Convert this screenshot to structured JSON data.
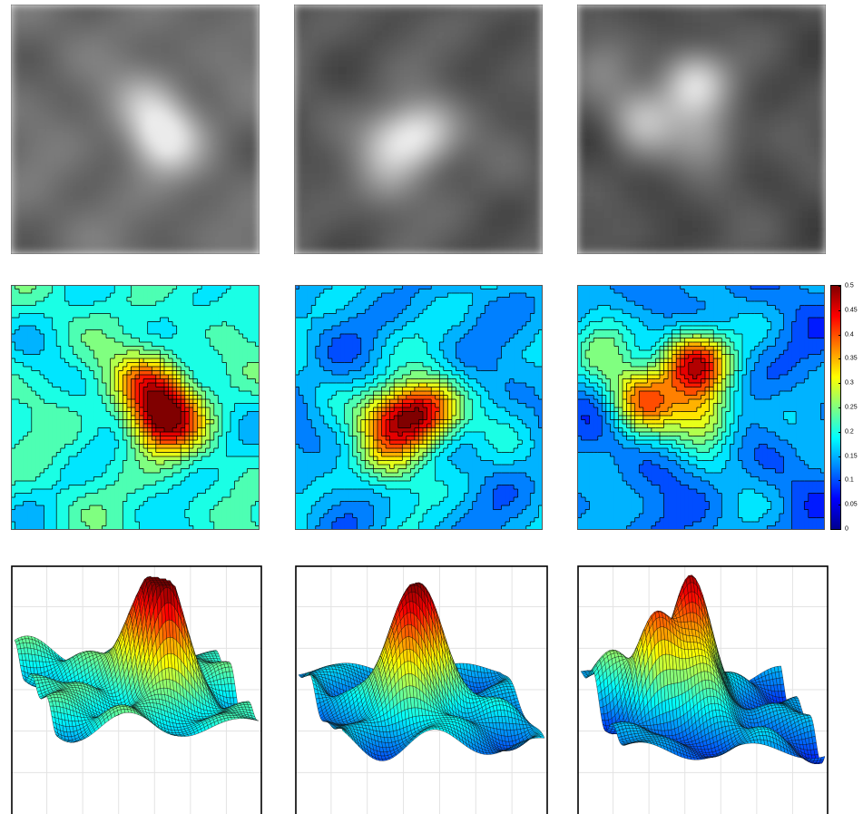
{
  "chart_data": {
    "type": "heatmap",
    "layout": {
      "rows": [
        "grayscale-image",
        "filled-contour-map",
        "3d-surface-plot"
      ],
      "columns": 3
    },
    "colormap": "jet",
    "colorbar": {
      "min": 0,
      "max": 0.5,
      "ticks": [
        "0",
        "0.05",
        "0.1",
        "0.15",
        "0.2",
        "0.25",
        "0.3",
        "0.35",
        "0.4",
        "0.45",
        "0.5"
      ],
      "placement": "right of third contour map"
    },
    "panels": [
      {
        "column": 1,
        "background_level": 0.2,
        "peaks": [
          {
            "x": 0.62,
            "y": 0.54,
            "value": 0.49
          },
          {
            "x": 0.55,
            "y": 0.4,
            "value": 0.36
          }
        ]
      },
      {
        "column": 2,
        "background_level": 0.15,
        "peaks": [
          {
            "x": 0.53,
            "y": 0.52,
            "value": 0.42
          },
          {
            "x": 0.4,
            "y": 0.55,
            "value": 0.36
          },
          {
            "x": 0.38,
            "y": 0.72,
            "value": 0.26
          }
        ]
      },
      {
        "column": 3,
        "background_level": 0.13,
        "peaks": [
          {
            "x": 0.47,
            "y": 0.32,
            "value": 0.45
          },
          {
            "x": 0.26,
            "y": 0.46,
            "value": 0.37
          },
          {
            "x": 0.52,
            "y": 0.54,
            "value": 0.31
          },
          {
            "x": 0.1,
            "y": 0.25,
            "value": 0.22
          }
        ]
      }
    ],
    "grid": {
      "surface_plots": true,
      "maps": false
    }
  }
}
